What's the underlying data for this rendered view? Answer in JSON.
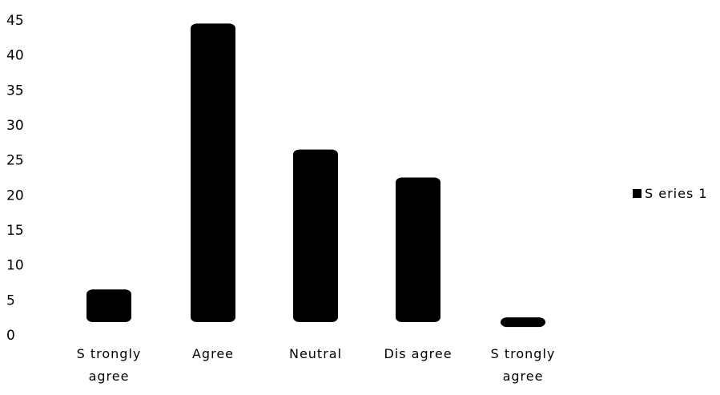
{
  "chart_data": {
    "type": "bar",
    "categories": [
      "S trongly agree",
      "Agree",
      "Neutral",
      "Dis agree",
      "S trongly agree"
    ],
    "category_lines": [
      [
        "S trongly",
        "agree"
      ],
      [
        "Agree"
      ],
      [
        "Neutral"
      ],
      [
        "Dis agree"
      ],
      [
        "S trongly",
        "agree"
      ]
    ],
    "series": [
      {
        "name": "S eries 1",
        "values": [
          6.5,
          44.5,
          26.5,
          22.5,
          2.5
        ],
        "color": "#000000"
      }
    ],
    "ylim": [
      0,
      45
    ],
    "yticks": [
      "0",
      "5",
      "10",
      "15",
      "20",
      "25",
      "30",
      "35",
      "40",
      "45"
    ],
    "grid": false,
    "legend_position": "right"
  }
}
